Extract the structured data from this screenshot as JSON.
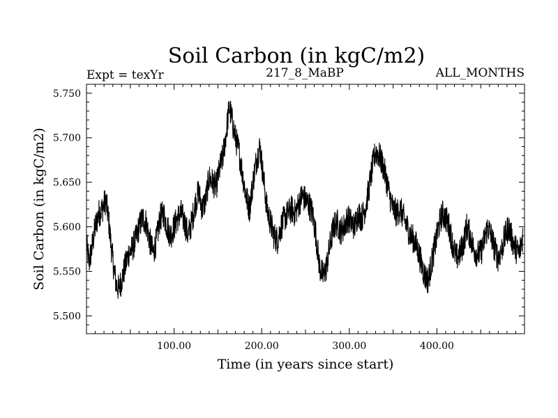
{
  "chart_data": {
    "type": "line",
    "title": "Soil Carbon (in kgC/m2)",
    "subtitle_left": "Expt = texYr",
    "subtitle_center": "217_8_MaBP",
    "subtitle_right": "ALL_MONTHS",
    "xlabel": "Time (in years since start)",
    "ylabel": "Soil Carbon (in kgC/m2)",
    "xlim": [
      0,
      500
    ],
    "ylim": [
      5.48,
      5.76
    ],
    "x_ticks": [
      100,
      200,
      300,
      400
    ],
    "x_tick_labels": [
      "100.00",
      "200.00",
      "300.00",
      "400.00"
    ],
    "y_ticks": [
      5.5,
      5.55,
      5.6,
      5.65,
      5.7,
      5.75
    ],
    "y_tick_labels": [
      "5.500",
      "5.550",
      "5.600",
      "5.650",
      "5.700",
      "5.750"
    ],
    "series": [
      {
        "color": "#000000",
        "x": [
          0,
          3,
          6,
          10,
          14,
          18,
          22,
          25,
          28,
          31,
          34,
          37,
          40,
          44,
          48,
          52,
          56,
          60,
          64,
          68,
          72,
          76,
          80,
          84,
          88,
          92,
          96,
          100,
          104,
          108,
          112,
          116,
          120,
          124,
          128,
          132,
          136,
          140,
          144,
          148,
          152,
          156,
          160,
          163,
          166,
          170,
          174,
          178,
          182,
          186,
          190,
          194,
          198,
          202,
          206,
          210,
          214,
          218,
          222,
          226,
          230,
          234,
          238,
          242,
          246,
          250,
          254,
          258,
          262,
          266,
          270,
          274,
          278,
          282,
          286,
          290,
          294,
          298,
          302,
          306,
          310,
          314,
          318,
          322,
          326,
          330,
          334,
          338,
          342,
          346,
          350,
          354,
          358,
          362,
          366,
          370,
          374,
          378,
          382,
          386,
          390,
          394,
          398,
          402,
          406,
          410,
          414,
          418,
          422,
          426,
          430,
          434,
          438,
          442,
          446,
          450,
          454,
          458,
          462,
          466,
          470,
          474,
          478,
          482,
          486,
          490,
          494,
          498
        ],
        "values": [
          5.58,
          5.56,
          5.575,
          5.6,
          5.615,
          5.62,
          5.63,
          5.61,
          5.58,
          5.555,
          5.535,
          5.53,
          5.54,
          5.555,
          5.57,
          5.575,
          5.585,
          5.6,
          5.61,
          5.605,
          5.585,
          5.57,
          5.585,
          5.61,
          5.615,
          5.6,
          5.59,
          5.6,
          5.61,
          5.615,
          5.605,
          5.59,
          5.605,
          5.625,
          5.64,
          5.62,
          5.63,
          5.655,
          5.65,
          5.645,
          5.665,
          5.68,
          5.71,
          5.735,
          5.72,
          5.7,
          5.685,
          5.66,
          5.635,
          5.62,
          5.65,
          5.675,
          5.69,
          5.655,
          5.62,
          5.605,
          5.59,
          5.585,
          5.6,
          5.61,
          5.615,
          5.62,
          5.615,
          5.625,
          5.635,
          5.63,
          5.625,
          5.615,
          5.59,
          5.555,
          5.545,
          5.555,
          5.58,
          5.6,
          5.605,
          5.595,
          5.6,
          5.61,
          5.605,
          5.6,
          5.615,
          5.61,
          5.62,
          5.64,
          5.665,
          5.685,
          5.68,
          5.67,
          5.655,
          5.635,
          5.62,
          5.615,
          5.62,
          5.61,
          5.6,
          5.59,
          5.585,
          5.575,
          5.56,
          5.545,
          5.54,
          5.56,
          5.58,
          5.6,
          5.615,
          5.61,
          5.6,
          5.58,
          5.565,
          5.57,
          5.58,
          5.6,
          5.59,
          5.575,
          5.57,
          5.57,
          5.585,
          5.6,
          5.59,
          5.575,
          5.565,
          5.575,
          5.59,
          5.6,
          5.585,
          5.575,
          5.57,
          5.59
        ]
      }
    ]
  }
}
